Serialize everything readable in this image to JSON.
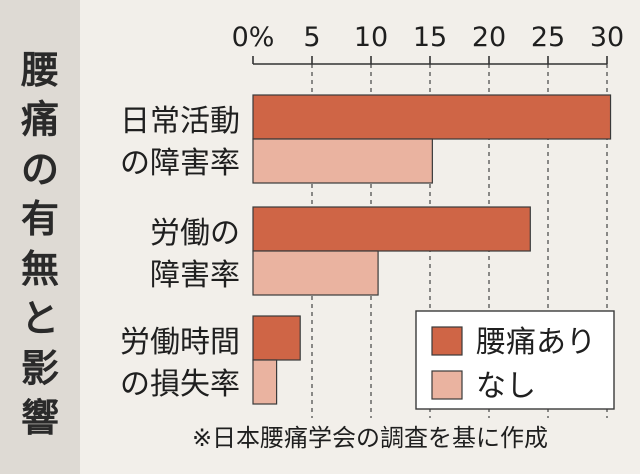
{
  "title": "腰痛の有無と影響",
  "source_note": "※日本腰痛学会の調査を基に作成",
  "chart_data": {
    "type": "bar",
    "orientation": "horizontal",
    "categories": [
      [
        "日常活動",
        "の障害率"
      ],
      [
        "労働の",
        "障害率"
      ],
      [
        "労働時間",
        "の損失率"
      ]
    ],
    "series": [
      {
        "name": "腰痛あり",
        "values": [
          30.3,
          23.5,
          4.0
        ],
        "color": "#cf6546"
      },
      {
        "name": "なし",
        "values": [
          15.2,
          10.6,
          2.0
        ],
        "color": "#eab3a0"
      }
    ],
    "x_ticks": [
      "0%",
      "5",
      "10",
      "15",
      "20",
      "25",
      "30"
    ],
    "xlim": [
      0,
      30
    ],
    "grid": "vertical dashed",
    "legend_position": "bottom-right"
  }
}
